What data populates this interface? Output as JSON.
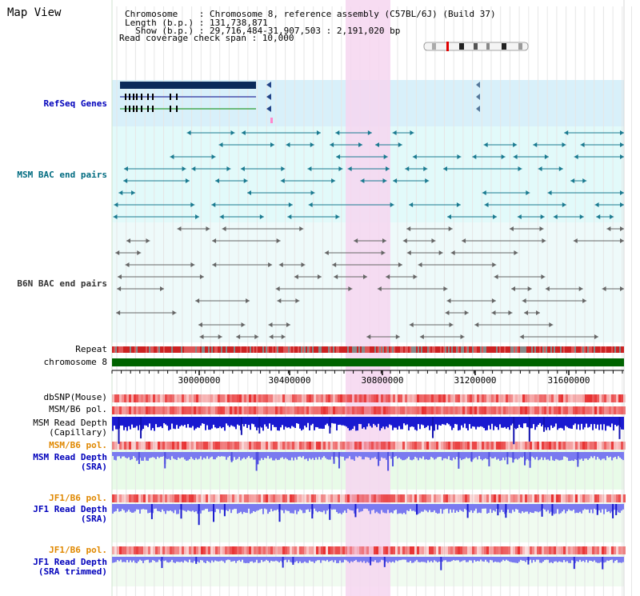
{
  "page": {
    "title": "Map View"
  },
  "header_info": {
    "line1": "Chromosome    : Chromosome 8, reference assembly (C57BL/6J) (Build 37)",
    "line2": "Length (b.p.) : 131,738,871",
    "line3": "  Show (b.p.) : 29,716,484-31,907,503 : 2,191,020 bp",
    "line4": "Read coverage check span : 10,000"
  },
  "tracks": {
    "refseq": {
      "label": "RefSeq Genes",
      "color": "#0000bb"
    },
    "msm_bac": {
      "label": "MSM BAC end pairs",
      "color": "#006b80"
    },
    "b6n_bac": {
      "label": "B6N BAC end pairs",
      "color": "#333333"
    },
    "repeat": {
      "label": "Repeat"
    },
    "chromosome": {
      "label": "chromosome 8",
      "color": "#006400"
    },
    "dbsnp": {
      "label": "dbSNP(Mouse)"
    },
    "msm_b6_pol_1": {
      "label": "MSM/B6 pol."
    },
    "msm_read_depth_cap": {
      "label": "MSM Read Depth\n(Capillary)"
    },
    "msm_b6_pol_2": {
      "label": "MSM/B6 pol.",
      "color": "#e08800"
    },
    "msm_read_depth_sra": {
      "label": "MSM Read Depth\n(SRA)",
      "color": "#0000bb"
    },
    "jf1_b6_pol_1": {
      "label": "JF1/B6 pol.",
      "color": "#e08800"
    },
    "jf1_read_depth_sra": {
      "label": "JF1 Read Depth\n(SRA)",
      "color": "#0000bb"
    },
    "jf1_b6_pol_2": {
      "label": "JF1/B6 pol.",
      "color": "#e08800"
    },
    "jf1_read_depth_trim": {
      "label": "JF1 Read Depth\n(SRA trimmed)",
      "color": "#0000bb"
    }
  },
  "axis": {
    "ticks": [
      "30000000",
      "30400000",
      "30800000",
      "31200000",
      "31600000"
    ]
  },
  "colors": {
    "highlight": "#f6d6f0",
    "refseq_bg": "#d8f0fa",
    "bac_bg": "#e2fafa",
    "b6n_bg": "#eefafa",
    "depth_bg": "#e8fbe8",
    "depth_blue": "#1a1ad0",
    "depth_light": "#7a7af0",
    "snp_red": "#e83030",
    "chromosome_green": "#006400"
  }
}
